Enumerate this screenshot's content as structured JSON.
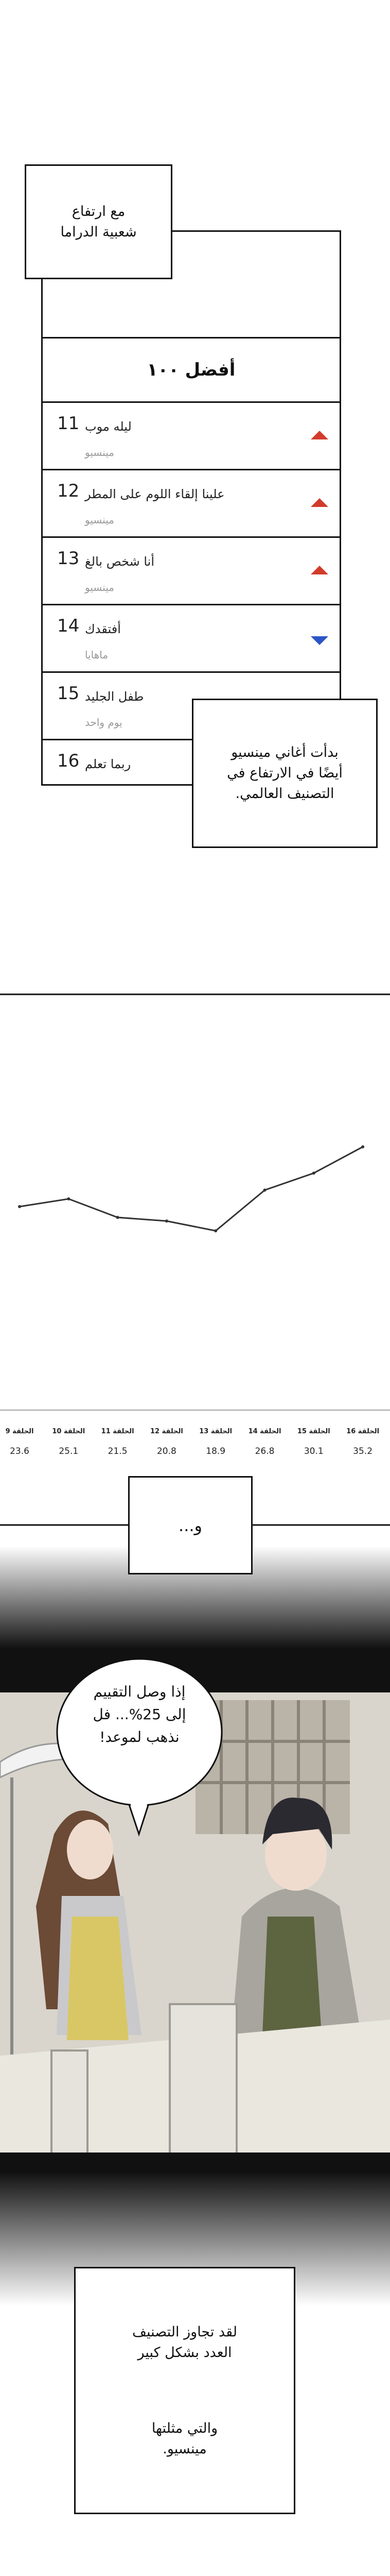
{
  "top_caption": {
    "lines": [
      "مع ارتفاع",
      "شعبية الدراما"
    ]
  },
  "ranking": {
    "title": "أفضل ١٠٠",
    "rows": [
      {
        "rank": 11,
        "song": "ليله موب",
        "artist": "مينسيو",
        "trend": "up"
      },
      {
        "rank": 12,
        "song": "علينا إلقاء اللوم على المطر",
        "artist": "مينسيو",
        "trend": "up"
      },
      {
        "rank": 13,
        "song": "أنا شخص بالغ",
        "artist": "مينسيو",
        "trend": "up"
      },
      {
        "rank": 14,
        "song": "أفتقدك",
        "artist": "ماهايا",
        "trend": "down"
      },
      {
        "rank": 15,
        "song": "طفل الجليد",
        "artist": "يوم واحد"
      },
      {
        "rank": 16,
        "song": "ربما تعلم"
      }
    ]
  },
  "side_caption": {
    "lines": [
      "بدأت أغاني مينسيو",
      "أيضًا في الارتفاع في",
      "التصنيف العالمي."
    ]
  },
  "chart_data": {
    "type": "line",
    "categories": [
      "الحلقة 9",
      "الحلقة 10",
      "الحلقة 11",
      "الحلقة 12",
      "الحلقة 13",
      "الحلقة 14",
      "الحلقة 15",
      "الحلقة 16"
    ],
    "values": [
      23.6,
      25.1,
      21.5,
      20.8,
      18.9,
      26.8,
      30.1,
      35.2
    ],
    "color": "#333333",
    "ylim": [
      0,
      60
    ]
  },
  "ellipsis_caption": "و...",
  "speech_bubble": {
    "lines": [
      "إذا وصل التقييم",
      "إلى 25%... فل",
      "نذهب لموعد!"
    ]
  },
  "bottom_caption": {
    "paragraphs": [
      [
        "لقد تجاوز التصنيف",
        "العدد بشكل كبير"
      ],
      [
        "والتي مثلتها",
        "مينسيو."
      ]
    ]
  }
}
